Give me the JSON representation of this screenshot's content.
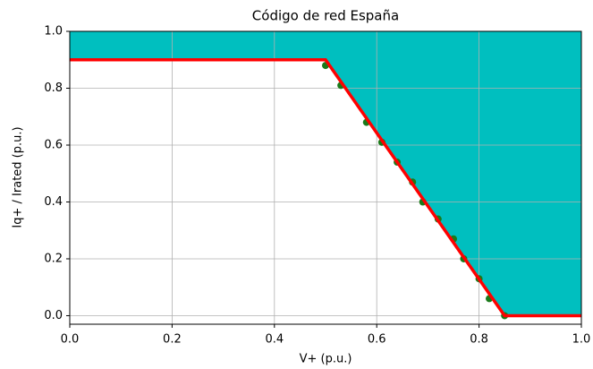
{
  "chart_data": {
    "type": "line",
    "title": "Código de red España",
    "xlabel": "V+ (p.u.)",
    "ylabel": "Iq+ / Irated (p.u.)",
    "xlim": [
      0,
      1.0
    ],
    "ylim": [
      -0.03,
      1.0
    ],
    "xticks": [
      {
        "value": 0,
        "label": "0.0"
      },
      {
        "value": 0.2,
        "label": "0.2"
      },
      {
        "value": 0.4,
        "label": "0.4"
      },
      {
        "value": 0.6,
        "label": "0.6"
      },
      {
        "value": 0.8,
        "label": "0.8"
      },
      {
        "value": 1,
        "label": "1.0"
      }
    ],
    "yticks": [
      {
        "value": 0,
        "label": "0.0"
      },
      {
        "value": 0.2,
        "label": "0.2"
      },
      {
        "value": 0.4,
        "label": "0.4"
      },
      {
        "value": 0.6,
        "label": "0.6"
      },
      {
        "value": 0.8,
        "label": "0.8"
      },
      {
        "value": 1,
        "label": "1.0"
      }
    ],
    "grid": true,
    "fill_above_color": "#00bfbf",
    "series": [
      {
        "color": "#ff0000",
        "x": [
          0,
          0.5,
          0.85,
          1.0
        ],
        "values": [
          0.9,
          0.9,
          0,
          0
        ]
      },
      {
        "color": "#1a7a1a",
        "marker": "o",
        "x": [
          0.5,
          0.53,
          0.58,
          0.61,
          0.64,
          0.67,
          0.69,
          0.72,
          0.75,
          0.77,
          0.8,
          0.82,
          0.85
        ],
        "values": [
          0.88,
          0.81,
          0.68,
          0.61,
          0.54,
          0.47,
          0.4,
          0.34,
          0.27,
          0.2,
          0.13,
          0.06,
          0.0
        ]
      }
    ]
  }
}
